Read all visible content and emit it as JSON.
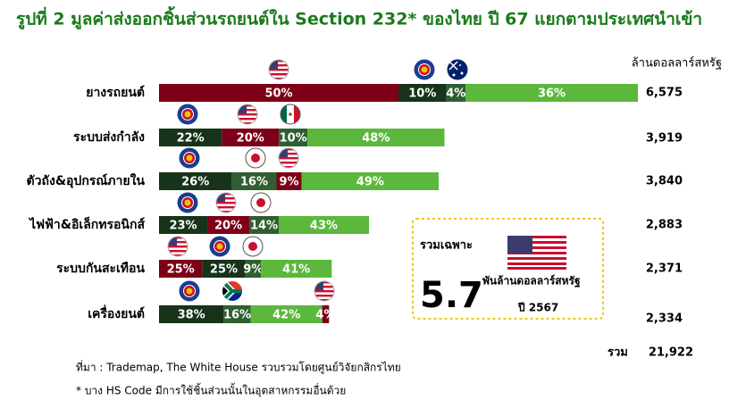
{
  "chart_data": {
    "type": "stacked-share-bar",
    "title": "รูปที่ 2 มูลค่าส่งออกชิ้นส่วนรถยนต์ใน Section 232* ของไทย ปี 67 แยกตามประเทศนำเข้า",
    "unit_label": "ล้านดอลลาร์สหรัฐ",
    "rows": [
      {
        "category": "ยางรถยนต์",
        "total": {
          "value": 6575,
          "label": "6,575"
        },
        "segments": [
          {
            "value": 50,
            "label": "50%",
            "color": "#7d0018"
          },
          {
            "value": 10,
            "label": "10%",
            "color": "#17331a"
          },
          {
            "value": 4,
            "label": "4%",
            "color": "#2f5f2f"
          },
          {
            "value": 36,
            "label": "36%",
            "color": "#5cb83c"
          }
        ]
      },
      {
        "category": "ระบบส่งกำลัง",
        "total": {
          "value": 3919,
          "label": "3,919"
        },
        "segments": [
          {
            "value": 22,
            "label": "22%",
            "color": "#17331a"
          },
          {
            "value": 20,
            "label": "20%",
            "color": "#7d0018"
          },
          {
            "value": 10,
            "label": "10%",
            "color": "#2f5f2f"
          },
          {
            "value": 48,
            "label": "48%",
            "color": "#5cb83c"
          }
        ]
      },
      {
        "category": "ตัวถัง&อุปกรณ์ภายใน",
        "total": {
          "value": 3840,
          "label": "3,840"
        },
        "segments": [
          {
            "value": 26,
            "label": "26%",
            "color": "#17331a"
          },
          {
            "value": 16,
            "label": "16%",
            "color": "#2f5f2f"
          },
          {
            "value": 9,
            "label": "9%",
            "color": "#7d0018"
          },
          {
            "value": 49,
            "label": "49%",
            "color": "#5cb83c"
          }
        ]
      },
      {
        "category": "ไฟฟ้า&อิเล็กทรอนิกส์",
        "total": {
          "value": 2883,
          "label": "2,883"
        },
        "segments": [
          {
            "value": 23,
            "label": "23%",
            "color": "#17331a"
          },
          {
            "value": 20,
            "label": "20%",
            "color": "#7d0018"
          },
          {
            "value": 14,
            "label": "14%",
            "color": "#2f5f2f"
          },
          {
            "value": 43,
            "label": "43%",
            "color": "#5cb83c"
          }
        ]
      },
      {
        "category": "ระบบกันสะเทือน",
        "total": {
          "value": 2371,
          "label": "2,371"
        },
        "segments": [
          {
            "value": 25,
            "label": "25%",
            "color": "#7d0018"
          },
          {
            "value": 25,
            "label": "25%",
            "color": "#17331a"
          },
          {
            "value": 9,
            "label": "9%",
            "color": "#2f5f2f"
          },
          {
            "value": 41,
            "label": "41%",
            "color": "#5cb83c"
          }
        ]
      },
      {
        "category": "เครื่องยนต์",
        "total": {
          "value": 2334,
          "label": "2,334"
        },
        "segments": [
          {
            "value": 38,
            "label": "38%",
            "color": "#17331a"
          },
          {
            "value": 16,
            "label": "16%",
            "color": "#2f5f2f"
          },
          {
            "value": 42,
            "label": "42%",
            "color": "#5cb83c"
          },
          {
            "value": 4,
            "label": "4%",
            "color": "#7d0018"
          }
        ]
      }
    ],
    "sum": {
      "label": "รวม",
      "value": {
        "value": 21922,
        "label": "21,922"
      }
    },
    "callout": {
      "heading": "รวมเฉพาะ",
      "value": 5.7,
      "unit": "พันล้านดอลลาร์สหรัฐ",
      "year": "ปี 2567"
    },
    "source": "ที่มา : Trademap, The White House รวบรวมโดยศูนย์วิจัยกสิกรไทย",
    "footnote": "* บาง HS Code มีการใช้ชิ้นส่วนนั้นในอุตสาหกรรมอื่นด้วย"
  }
}
